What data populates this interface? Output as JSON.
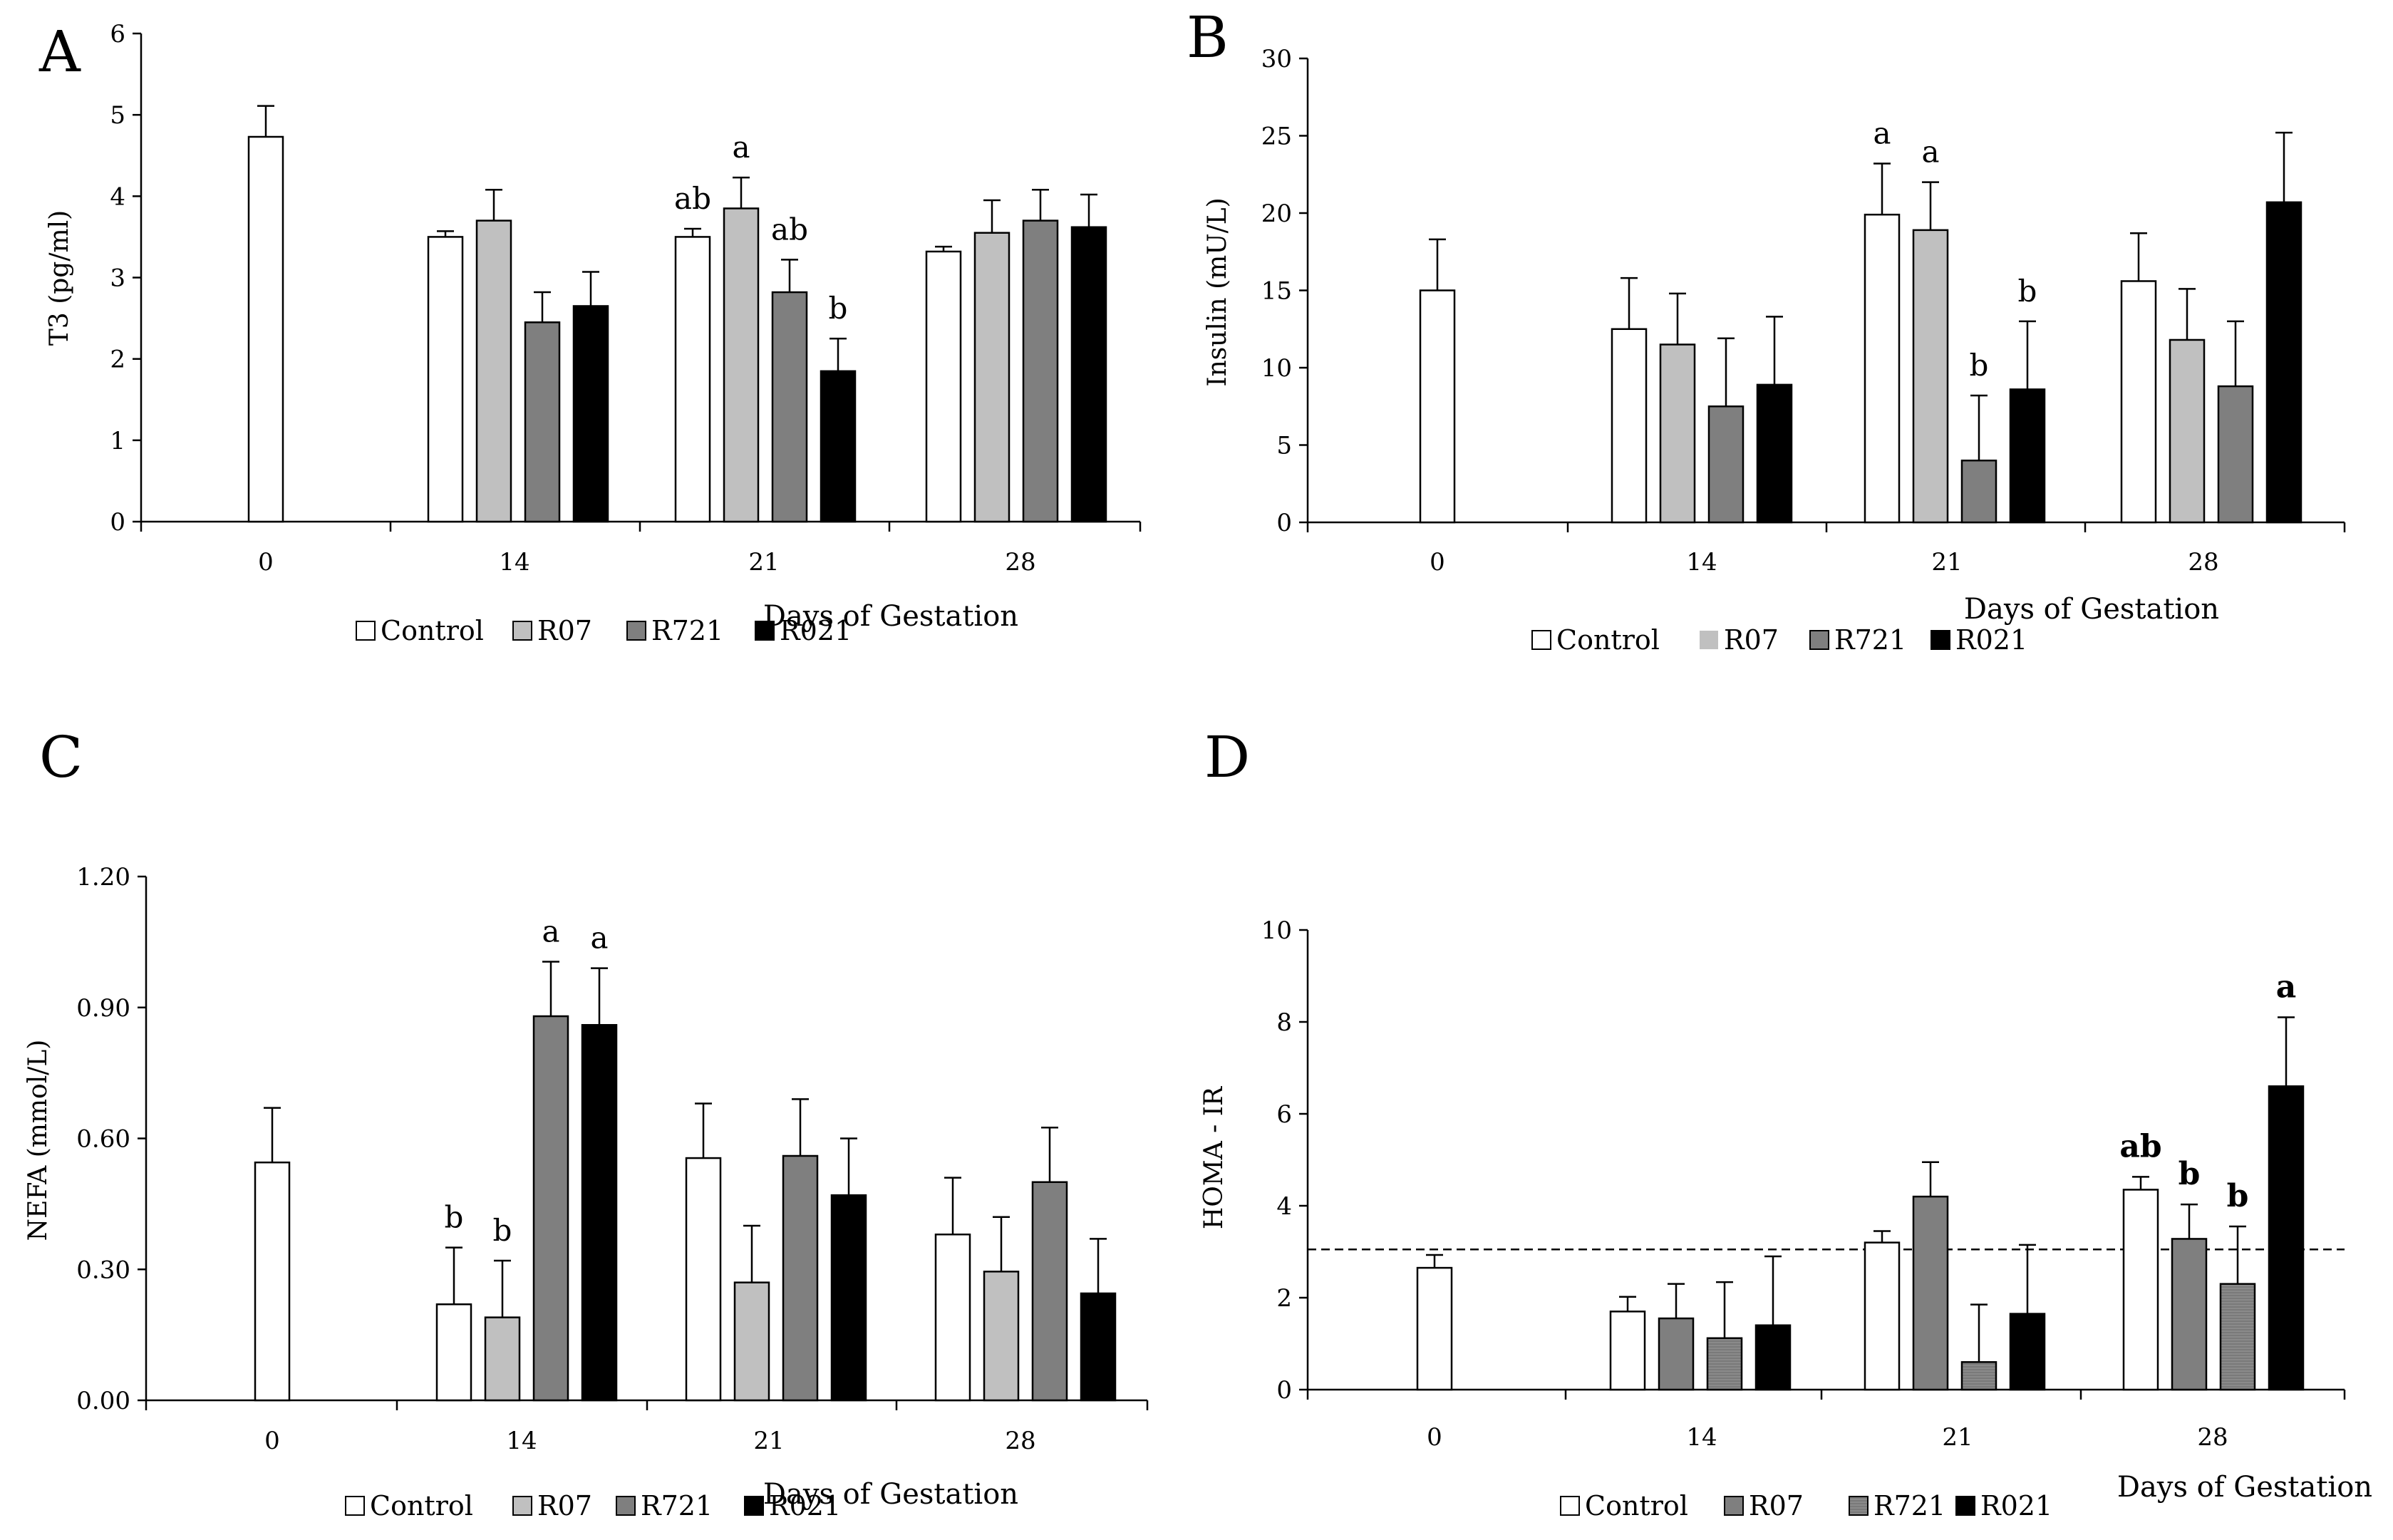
{
  "figure": {
    "legend_labels": [
      "Control",
      "R07",
      "R721",
      "R021"
    ],
    "xlabel": "Days of Gestation"
  },
  "chart_data": [
    {
      "panel": "A",
      "type": "bar",
      "ylabel": "T3 (pg/ml)",
      "xlabel": "Days of Gestation",
      "categories": [
        "0",
        "14",
        "21",
        "28"
      ],
      "ylim": [
        0,
        6
      ],
      "yticks": [
        "0",
        "1",
        "2",
        "3",
        "4",
        "5",
        "6"
      ],
      "tick_values": [
        0,
        1,
        2,
        3,
        4,
        5,
        6
      ],
      "dashed_line": null,
      "series": [
        {
          "name": "Control",
          "color": "#ffffff",
          "values": [
            4.73,
            3.5,
            3.5,
            3.32
          ],
          "errors": [
            0.38,
            0.07,
            0.1,
            0.06
          ],
          "labels": [
            "",
            "",
            "ab",
            ""
          ]
        },
        {
          "name": "R07",
          "color": "#c0c0c0",
          "values": [
            null,
            3.7,
            3.85,
            3.55
          ],
          "errors": [
            null,
            0.38,
            0.38,
            0.4
          ],
          "labels": [
            "",
            "",
            "a",
            ""
          ]
        },
        {
          "name": "R721",
          "color": "#7f7f7f",
          "values": [
            null,
            2.45,
            2.82,
            3.7
          ],
          "errors": [
            null,
            0.37,
            0.4,
            0.38
          ],
          "labels": [
            "",
            "",
            "ab",
            ""
          ]
        },
        {
          "name": "R021",
          "color": "#000000",
          "values": [
            null,
            2.65,
            1.85,
            3.62
          ],
          "errors": [
            null,
            0.42,
            0.4,
            0.4
          ],
          "labels": [
            "",
            "",
            "b",
            ""
          ]
        }
      ]
    },
    {
      "panel": "B",
      "type": "bar",
      "ylabel": "Insulin (mU/L)",
      "xlabel": "Days of Gestation",
      "categories": [
        "0",
        "14",
        "21",
        "28"
      ],
      "ylim": [
        0,
        30
      ],
      "yticks": [
        "0",
        "5",
        "10",
        "15",
        "20",
        "25",
        "30"
      ],
      "tick_values": [
        0,
        5,
        10,
        15,
        20,
        25,
        30
      ],
      "dashed_line": null,
      "series": [
        {
          "name": "Control",
          "color": "#ffffff",
          "values": [
            15.0,
            12.5,
            19.9,
            15.6
          ],
          "errors": [
            3.3,
            3.3,
            3.3,
            3.1
          ],
          "labels": [
            "",
            "",
            "a",
            ""
          ]
        },
        {
          "name": "R07",
          "color": "#c0c0c0",
          "values": [
            null,
            11.5,
            18.9,
            11.8
          ],
          "errors": [
            null,
            3.3,
            3.1,
            3.3
          ],
          "labels": [
            "",
            "",
            "a",
            ""
          ]
        },
        {
          "name": "R721",
          "color": "#7f7f7f",
          "values": [
            null,
            7.5,
            4.0,
            8.8
          ],
          "errors": [
            null,
            4.4,
            4.2,
            4.2
          ],
          "labels": [
            "",
            "",
            "b",
            ""
          ]
        },
        {
          "name": "R021",
          "color": "#000000",
          "values": [
            null,
            8.9,
            8.6,
            20.7
          ],
          "errors": [
            null,
            4.4,
            4.4,
            4.5
          ],
          "labels": [
            "",
            "",
            "b",
            ""
          ]
        }
      ]
    },
    {
      "panel": "C",
      "type": "bar",
      "ylabel": "NEFA (mmol/L)",
      "xlabel": "Days of Gestation",
      "categories": [
        "0",
        "14",
        "21",
        "28"
      ],
      "ylim": [
        0,
        1.2
      ],
      "yticks": [
        "0.00",
        "0.30",
        "0.60",
        "0.90",
        "1.20"
      ],
      "tick_values": [
        0,
        0.3,
        0.6,
        0.9,
        1.2
      ],
      "dashed_line": null,
      "series": [
        {
          "name": "Control",
          "color": "#ffffff",
          "values": [
            0.545,
            0.22,
            0.555,
            0.38
          ],
          "errors": [
            0.125,
            0.13,
            0.125,
            0.13
          ],
          "labels": [
            "",
            "b",
            "",
            ""
          ]
        },
        {
          "name": "R07",
          "color": "#c0c0c0",
          "values": [
            null,
            0.19,
            0.27,
            0.295
          ],
          "errors": [
            null,
            0.13,
            0.13,
            0.125
          ],
          "labels": [
            "",
            "b",
            "",
            ""
          ]
        },
        {
          "name": "R721",
          "color": "#7f7f7f",
          "values": [
            null,
            0.88,
            0.56,
            0.5
          ],
          "errors": [
            null,
            0.125,
            0.13,
            0.125
          ],
          "labels": [
            "",
            "a",
            "",
            ""
          ]
        },
        {
          "name": "R021",
          "color": "#000000",
          "values": [
            null,
            0.86,
            0.47,
            0.245
          ],
          "errors": [
            null,
            0.13,
            0.13,
            0.125
          ],
          "labels": [
            "",
            "a",
            "",
            ""
          ]
        }
      ]
    },
    {
      "panel": "D",
      "type": "bar",
      "ylabel": "HOMA - IR",
      "xlabel": "Days of Gestation",
      "categories": [
        "0",
        "14",
        "21",
        "28"
      ],
      "ylim": [
        0,
        10
      ],
      "yticks": [
        "0",
        "2",
        "4",
        "6",
        "8",
        "10"
      ],
      "tick_values": [
        0,
        2,
        4,
        6,
        8,
        10
      ],
      "dashed_line": 3.05,
      "series": [
        {
          "name": "Control",
          "color": "#ffffff",
          "values": [
            2.65,
            1.7,
            3.2,
            4.35
          ],
          "errors": [
            0.28,
            0.32,
            0.25,
            0.28
          ],
          "labels": [
            "",
            "",
            "",
            "ab"
          ]
        },
        {
          "name": "R07",
          "color": "#7f7f7f",
          "values": [
            null,
            1.55,
            4.2,
            3.28
          ],
          "errors": [
            null,
            0.75,
            0.75,
            0.75
          ],
          "labels": [
            "",
            "",
            "",
            "b"
          ]
        },
        {
          "name": "R721",
          "color": "#8a8a8a",
          "values": [
            null,
            1.12,
            0.6,
            2.3
          ],
          "errors": [
            null,
            1.22,
            1.25,
            1.25
          ],
          "labels": [
            "",
            "",
            "",
            "b"
          ]
        },
        {
          "name": "R021",
          "color": "#000000",
          "values": [
            null,
            1.4,
            1.65,
            6.6
          ],
          "errors": [
            null,
            1.5,
            1.5,
            1.5
          ],
          "labels": [
            "",
            "",
            "",
            "a"
          ]
        }
      ]
    }
  ]
}
